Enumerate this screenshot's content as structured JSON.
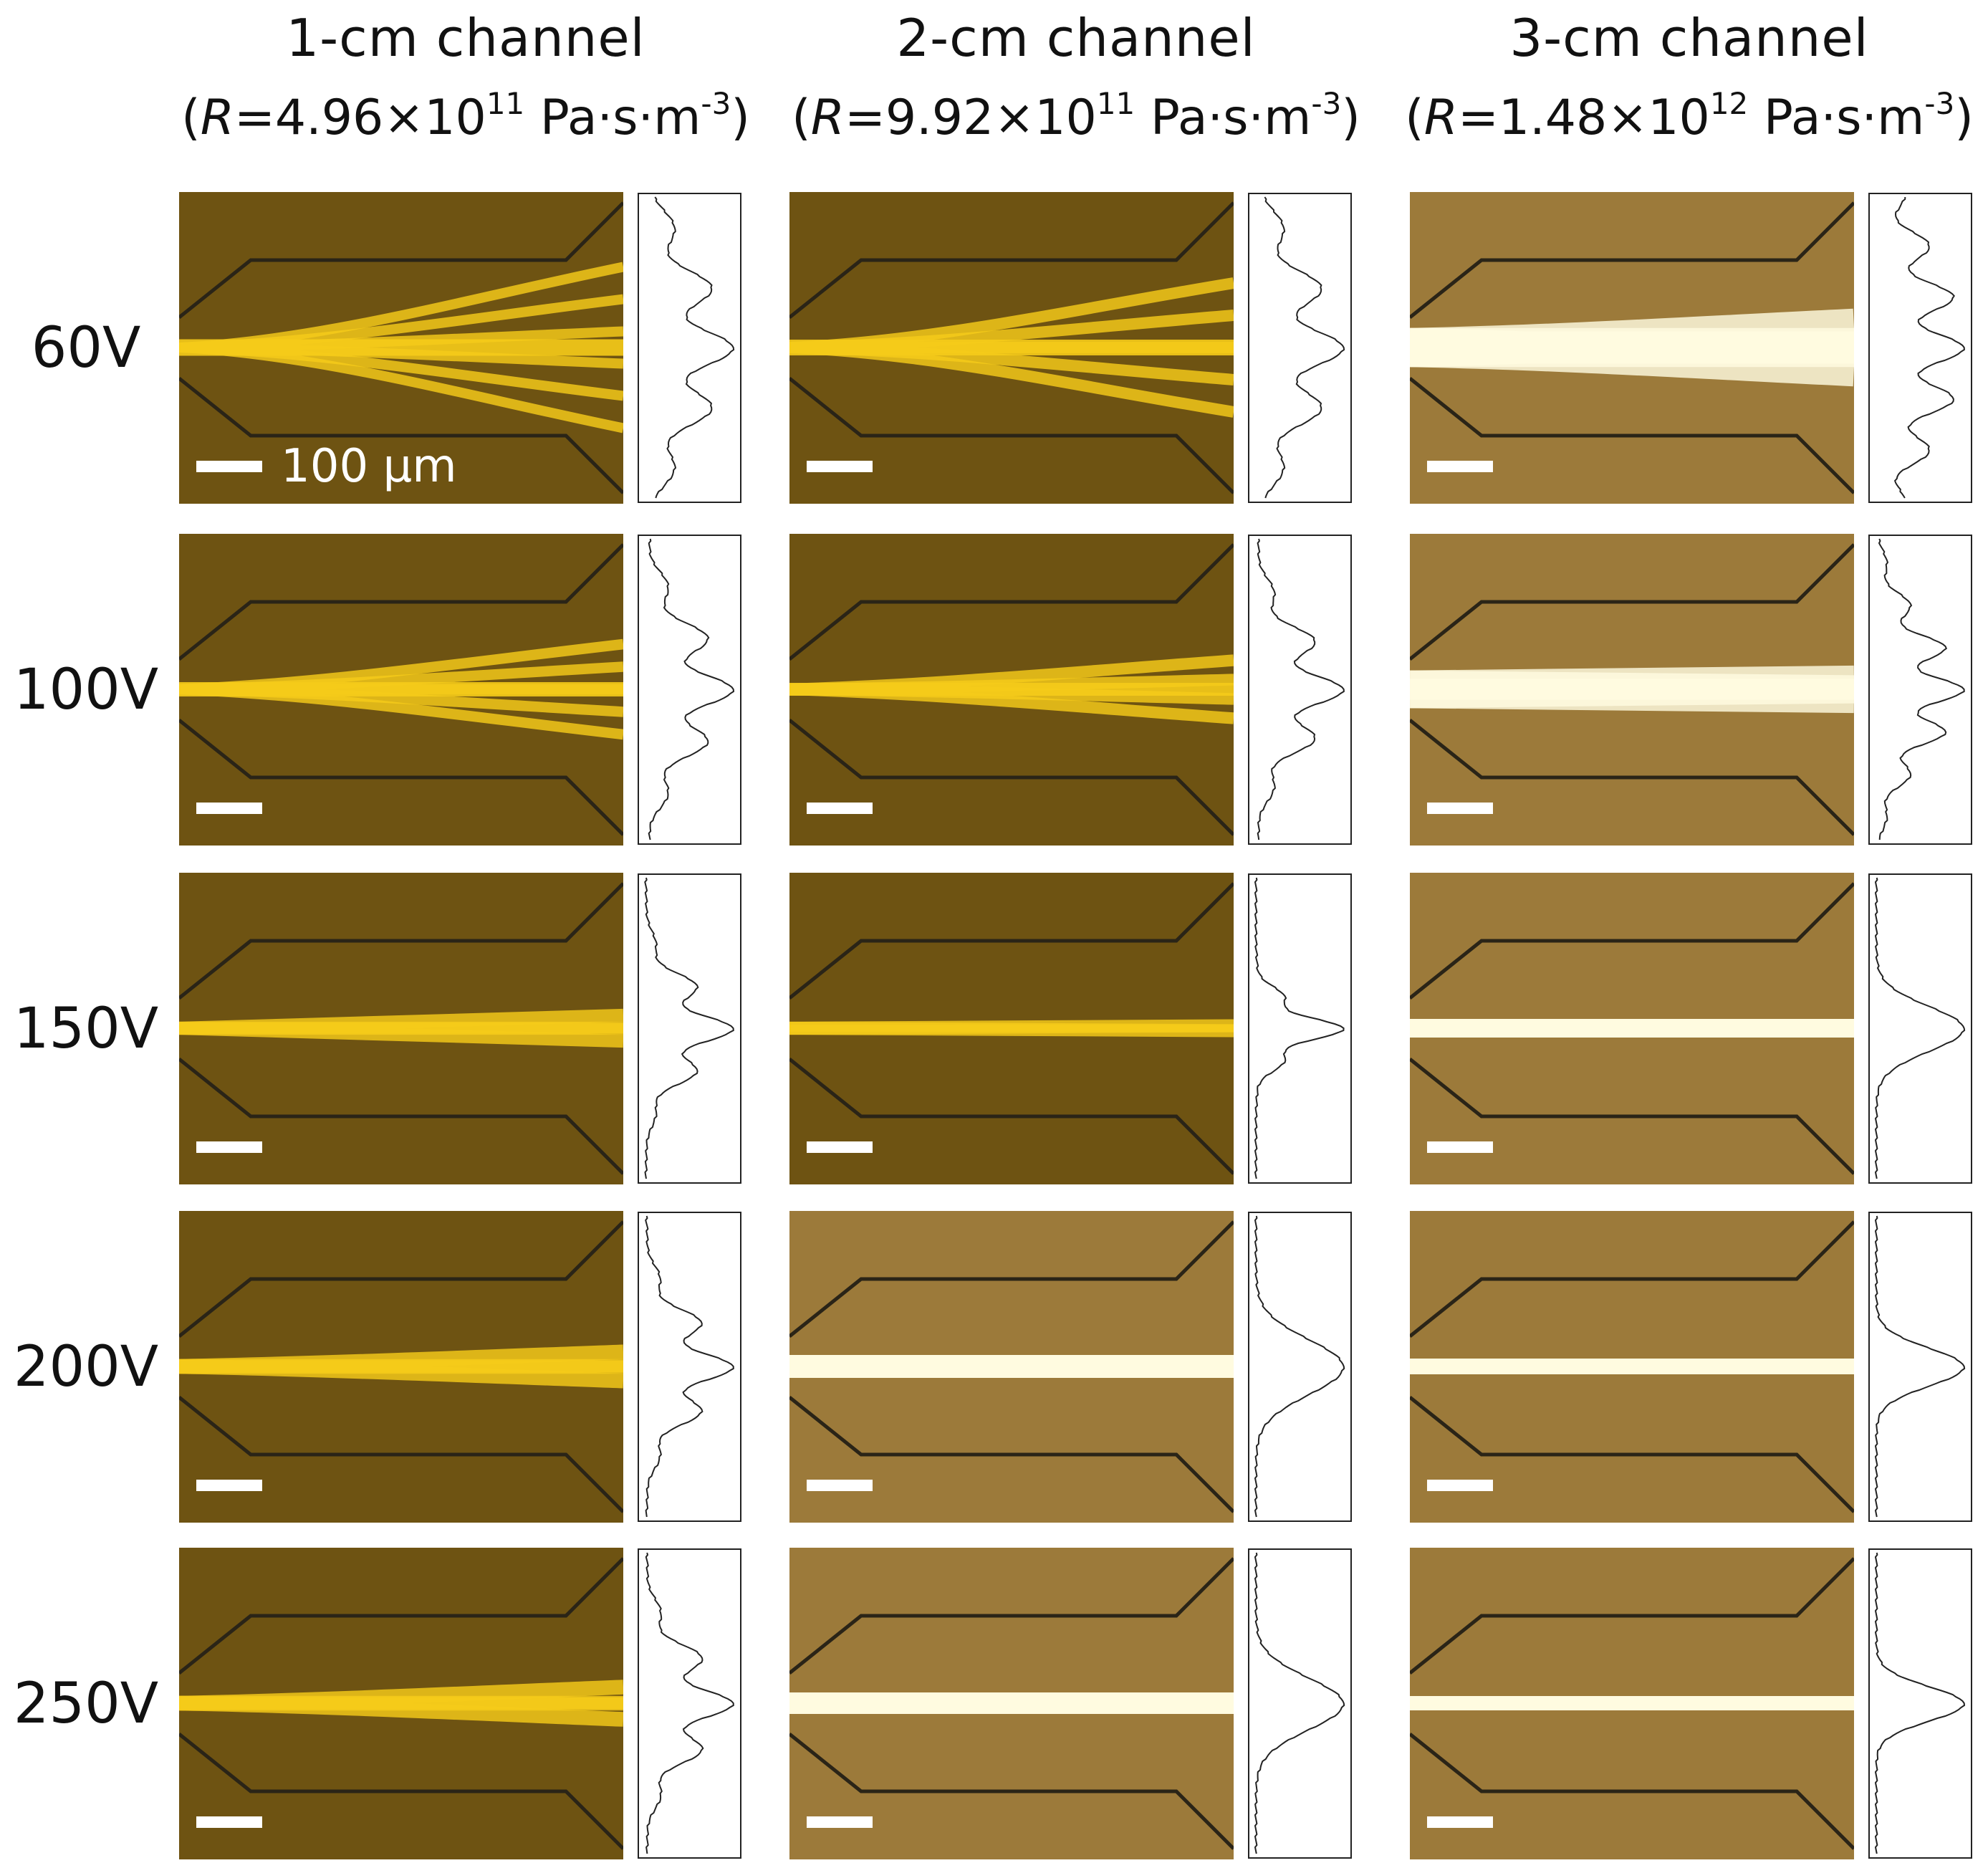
{
  "columns": [
    {
      "title": "1-cm channel",
      "r_prefix": "(",
      "r_symbol": "R",
      "r_value": "=4.96×10",
      "r_exp": "11",
      "r_unit": " Pa·s·m",
      "r_unit_exp": "-3",
      "r_suffix": ")"
    },
    {
      "title": "2-cm channel",
      "r_prefix": "(",
      "r_symbol": "R",
      "r_value": "=9.92×10",
      "r_exp": "11",
      "r_unit": " Pa·s·m",
      "r_unit_exp": "-3",
      "r_suffix": ")"
    },
    {
      "title": "3-cm channel",
      "r_prefix": "(",
      "r_symbol": "R",
      "r_value": "=1.48×10",
      "r_exp": "12",
      "r_unit": " Pa·s·m",
      "r_unit_exp": "-3",
      "r_suffix": ")"
    }
  ],
  "rows": [
    "60V",
    "100V",
    "150V",
    "200V",
    "250V"
  ],
  "scale_bar_label": "100 μm",
  "colors": {
    "dark_background": "#6e5312",
    "light_background": "#9c7a3a",
    "stream_yellow": "#f5cb1a",
    "stream_white": "#fffbe0",
    "channel_wall": "#2a2417",
    "profile_line": "#222222"
  }
}
